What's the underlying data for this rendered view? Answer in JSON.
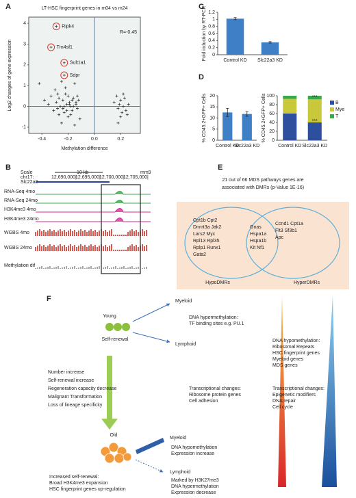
{
  "panel_labels": [
    "A",
    "B",
    "C",
    "D",
    "E",
    "F"
  ],
  "chart_data": [
    {
      "type": "scatter",
      "title": "LT-HSC fingerprint genes in m04 vs m24",
      "x_label": "Methylation difference",
      "y_label": "Log2 changes of gene expression",
      "annotation": "R=-0.45",
      "xlim": [
        -0.5,
        0.35
      ],
      "ylim": [
        -1.3,
        4.3
      ],
      "xticks": [
        -0.4,
        -0.2,
        {
          "value": 0,
          "label": "0.0"
        },
        0.2
      ],
      "yticks": [
        -1,
        0,
        1,
        2,
        3,
        4
      ],
      "background": "#eef3f2",
      "color": "#333333",
      "ref_color": "#4a7fc0",
      "highlight_color": "#d9342b",
      "x": [
        -0.42,
        -0.38,
        -0.35,
        -0.33,
        -0.31,
        -0.3,
        -0.29,
        -0.28,
        -0.27,
        -0.26,
        -0.25,
        -0.24,
        -0.23,
        -0.22,
        -0.21,
        -0.2,
        -0.19,
        -0.18,
        -0.17,
        -0.16,
        -0.15,
        -0.14,
        -0.13,
        -0.12,
        -0.11,
        -0.25,
        -0.22,
        -0.2,
        -0.18,
        -0.16,
        -0.14,
        -0.28,
        -0.24,
        -0.19,
        -0.17,
        -0.21,
        -0.23,
        -0.27,
        -0.15,
        -0.13,
        0.15,
        0.17,
        0.18,
        0.19,
        0.2,
        0.21,
        0.22,
        0.23,
        0.24,
        0.26,
        0.18,
        0.2,
        0.22,
        0.25
      ],
      "y": [
        1.1,
        0.3,
        0.1,
        0.5,
        -0.2,
        0.8,
        0.2,
        -0.1,
        0.4,
        0.0,
        1.2,
        0.3,
        -0.3,
        0.6,
        0.1,
        -0.5,
        0.2,
        0.0,
        -0.2,
        0.4,
        1.1,
        0.1,
        -0.1,
        0.3,
        -0.6,
        -0.8,
        0.9,
        0.5,
        -0.4,
        0.0,
        0.2,
        0.6,
        -0.1,
        0.1,
        0.3,
        -0.2,
        0.0,
        -0.4,
        -0.9,
        0.5,
        0.2,
        0.5,
        -0.1,
        0.1,
        0.3,
        -0.3,
        0.0,
        0.4,
        -0.2,
        0.1,
        -0.8,
        -0.5,
        0.6,
        -0.4
      ],
      "annotations": [
        {
          "text": "Ripk4",
          "x": -0.29,
          "y": 3.85
        },
        {
          "text": "Tm4sf1",
          "x": -0.33,
          "y": 2.85
        },
        {
          "text": "Sult1a1",
          "x": -0.23,
          "y": 2.1
        },
        {
          "text": "Sdpr",
          "x": -0.23,
          "y": 1.5
        }
      ]
    },
    {
      "type": "bar",
      "y_label": "Fold induction by RT-PCR",
      "categories": [
        "Control KD",
        "Slc22a3 KD"
      ],
      "values": [
        1.02,
        0.35
      ],
      "errors": [
        0.03,
        0.02
      ],
      "color": "#3f7fc6",
      "ylim": [
        0,
        1.2
      ],
      "yticks": [
        0,
        0.2,
        0.4,
        0.6,
        0.8,
        1,
        1.2
      ]
    },
    {
      "type": "bar",
      "y_label": "% CD45.2+GFP+ Cells",
      "categories": [
        "Control KD",
        "Slc22a3 KD"
      ],
      "values": [
        12.5,
        11.8
      ],
      "errors": [
        1.8,
        1.0
      ],
      "color": "#3f7fc6",
      "ylim": [
        0,
        20
      ],
      "yticks": [
        0,
        5,
        10,
        15,
        20
      ]
    },
    {
      "type": "stacked_bar",
      "y_label": "% CD45.2+GFP+ Cells",
      "categories": [
        "Control KD",
        "Slc22a3 KD"
      ],
      "series": [
        {
          "name": "B",
          "color": "#2e4f9e",
          "values": [
            60,
            40
          ]
        },
        {
          "name": "Mye",
          "color": "#c9c83b",
          "values": [
            33,
            52
          ]
        },
        {
          "name": "T",
          "color": "#3aa84a",
          "values": [
            7,
            8
          ]
        }
      ],
      "ylim": [
        0,
        100
      ],
      "yticks": [
        0,
        20,
        40,
        60,
        80,
        100
      ],
      "annotations": [
        {
          "text": "***",
          "x": 1,
          "y": 97
        },
        {
          "text": "***",
          "x": 1,
          "y": 43
        }
      ]
    }
  ],
  "B": {
    "scale": "Scale",
    "chrom": "chr17:",
    "scalebar": "10 kb",
    "genome": "mm9",
    "coords": [
      "12,690,000|",
      "12,695,000|",
      "12,700,000|",
      "12,705,000|"
    ],
    "gene": "Slc22a3",
    "tracks": [
      {
        "name": "RNA-Seq 4mo",
        "color": "#3aa84a"
      },
      {
        "name": "RNA-Seq 24mo",
        "color": "#3aa84a"
      },
      {
        "name": "H3K4me3 4mo",
        "color": "#d6299b"
      },
      {
        "name": "H3K4me3 24mo",
        "color": "#d6299b"
      },
      {
        "name": "WGBS 4mo",
        "color": "#c8332b"
      },
      {
        "name": "WGBS 24mo",
        "color": "#c8332b"
      },
      {
        "name": "Methylation dif",
        "color": "#222222"
      }
    ]
  },
  "E": {
    "title": [
      "21 out of 66 MDS pathways genes are",
      "associated with DMRs (p-Value 1E-16)"
    ],
    "hypo_genes": [
      "Cpt1b Cpt2",
      "Dnmt3a Jak2",
      "Lars2 Myc",
      "Rpl13 Rpl35",
      "Rplp1 Runx1",
      "Gata2"
    ],
    "shared_genes": [
      "Gnas",
      "Hspa1a",
      "Hspa1b",
      "Kit Nf1"
    ],
    "hyper_genes": [
      "Ccnd1 Cpt1a",
      "Flt3 Sf3b1",
      "Apc"
    ],
    "hypo_label": "HypoDMRs",
    "hyper_label": "HyperDMRs"
  },
  "F": {
    "groups": [
      [
        "Young"
      ],
      [
        "Self-renewal"
      ],
      [
        "Myeloid"
      ],
      [
        "Lymphoid"
      ],
      [
        "DNA hypermethylation:",
        "TF binding sites e.g. PU.1"
      ],
      [
        "DNA hypomethylation:",
        "Ribosomal Repeats",
        "HSC fingerprint genes",
        "Myeloid genes",
        "MDS genes"
      ],
      [
        "Transcriptional changes:",
        "Epigenetic modifiers",
        "DNA repair",
        "Cell cycle"
      ],
      [
        "Transcriptional changes:",
        "Ribosome protein genes",
        "Cell adhesion"
      ],
      [
        "Number increase",
        "Self-renewal increase",
        "Regeneration capacity decrease",
        "Malignant Transformation",
        "Loss of lineage specificity"
      ],
      [
        "Old"
      ],
      [
        "Myeloid"
      ],
      [
        "DNA hypomethylation",
        "Expression increase"
      ],
      [
        "Lymphoid"
      ],
      [
        "Marked by H3K27me3",
        "DNA hypermethylation",
        "Expression decrease"
      ],
      [
        "Increased self-renewal:",
        "Broad H3K4me3 expansion",
        "HSC fingerprint genes up-regulation"
      ]
    ]
  }
}
